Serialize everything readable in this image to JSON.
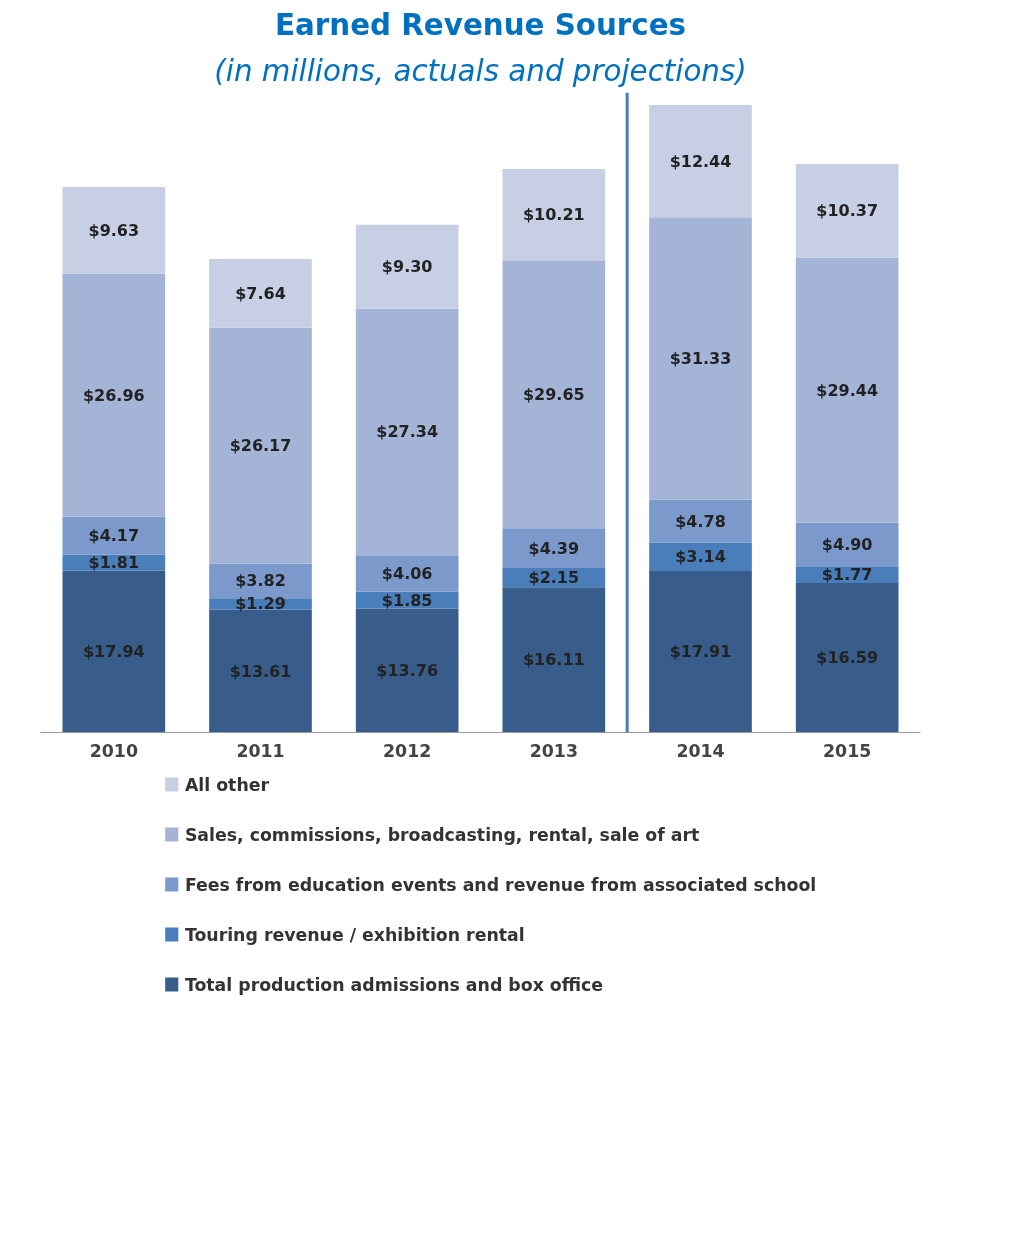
{
  "chart_data": {
    "type": "bar",
    "stacked": true,
    "title": "Earned Revenue Sources",
    "subtitle": "(in millions, actuals and projections)",
    "x": [
      2010,
      2011,
      2012,
      2013,
      2014,
      2015
    ],
    "xlim": [
      2009.5,
      2015.5
    ],
    "xticks": [
      2010,
      2011,
      2012,
      2013,
      2014,
      2015
    ],
    "tick_labels": "x",
    "series": [
      {
        "name": "Total production admissions and box office",
        "color": "#395d8a",
        "values": [
          17.94,
          13.61,
          13.76,
          16.11,
          17.91,
          16.59
        ],
        "value_labels": [
          "$17.94",
          "$13.61",
          "$13.76",
          "$16.11",
          "$17.91",
          "$16.59"
        ]
      },
      {
        "name": "Touring revenue / exhibition rental",
        "color": "#4a7ebb",
        "values": [
          1.81,
          1.29,
          1.85,
          2.15,
          3.14,
          1.77
        ],
        "value_labels": [
          "$1.81",
          "$1.29",
          "$1.85",
          "$2.15",
          "$3.14",
          "$1.77"
        ]
      },
      {
        "name": "Fees from education events and revenue from associated school",
        "color": "#7b9acb",
        "values": [
          4.17,
          3.82,
          4.06,
          4.39,
          4.78,
          4.9
        ],
        "value_labels": [
          "$4.17",
          "$3.82",
          "$4.06",
          "$4.39",
          "$4.78",
          "$4.90"
        ]
      },
      {
        "name": "Sales, commissions, broadcasting, rental, sale of art",
        "color": "#a3b4d6",
        "values": [
          26.96,
          26.17,
          27.34,
          29.65,
          31.33,
          29.44
        ],
        "value_labels": [
          "$26.96",
          "$26.17",
          "$27.34",
          "$29.65",
          "$31.33",
          "$29.44"
        ]
      },
      {
        "name": "All other",
        "color": "#c6cfe4",
        "values": [
          9.63,
          7.64,
          9.3,
          10.21,
          12.44,
          10.37
        ],
        "value_labels": [
          "$9.63",
          "$7.64",
          "$9.30",
          "$10.21",
          "$12.44",
          "$10.37"
        ]
      }
    ],
    "legend": "bottom",
    "ref_lines": [
      {
        "axis": "x",
        "value": 2013.5,
        "label": null,
        "color": "#4a7ebb"
      }
    ]
  }
}
